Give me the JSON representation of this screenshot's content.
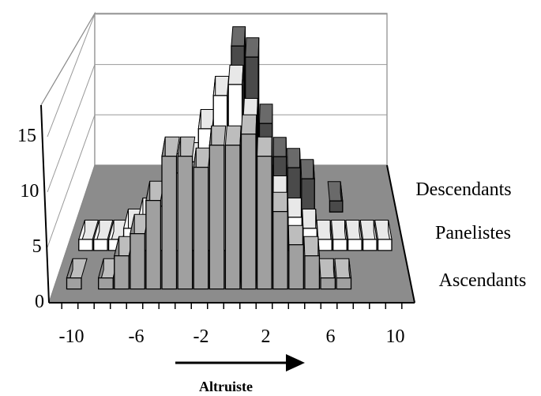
{
  "chart_data": {
    "type": "bar",
    "subtype": "3d-column",
    "title": "",
    "xlabel": "Altruiste",
    "xlabel_arrow": "right",
    "ylabel": "",
    "ylim": [
      0,
      15
    ],
    "y_ticks": [
      "0",
      "5",
      "10",
      "15"
    ],
    "x_ticks": [
      "-10",
      "-6",
      "-2",
      "2",
      "6",
      "10"
    ],
    "categories": [
      -10,
      -9,
      -8,
      -7,
      -6,
      -5,
      -4,
      -3,
      -2,
      -1,
      0,
      1,
      2,
      3,
      4,
      5,
      6,
      7,
      8,
      9,
      10
    ],
    "series": [
      {
        "name": "Ascendants",
        "color": "#a0a0a0",
        "values": [
          1,
          0,
          1,
          3,
          5,
          8,
          12,
          12,
          11,
          13,
          13,
          14,
          12,
          7,
          4,
          3,
          1,
          1,
          0,
          0,
          0
        ]
      },
      {
        "name": "Panelistes",
        "color": "#ffffff",
        "values": [
          1,
          1,
          1,
          2,
          3,
          4,
          7,
          8,
          11,
          14,
          15,
          12,
          8,
          5,
          3,
          2,
          1,
          1,
          1,
          1,
          1
        ]
      },
      {
        "name": "Descendants",
        "color": "#4a4a4a",
        "values": [
          0,
          0,
          0,
          0,
          0,
          0,
          0,
          1,
          5,
          10,
          15,
          14,
          8,
          5,
          4,
          3,
          0,
          1,
          0,
          0,
          0
        ]
      }
    ],
    "grid": true,
    "legend": "none"
  }
}
